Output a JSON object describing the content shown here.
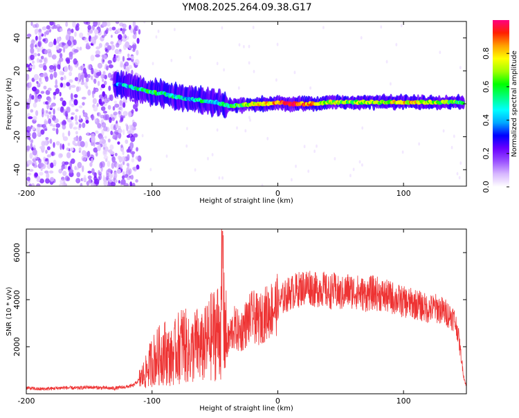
{
  "figure": {
    "title": "YM08.2025.264.09.38.G17"
  },
  "chart_data": [
    {
      "type": "heatmap",
      "xlabel": "Height of straight line (km)",
      "ylabel": "Frequency (Hz)",
      "xlim": [
        -200,
        150
      ],
      "ylim": [
        -50,
        50
      ],
      "xticks": [
        -200,
        -100,
        0,
        100
      ],
      "xtick_labels": [
        "-200",
        "-100",
        "0",
        "100"
      ],
      "yticks": [
        -40,
        -20,
        0,
        20,
        40
      ],
      "ytick_labels": [
        "-40",
        "-20",
        "0",
        "20",
        "40"
      ],
      "colorbar": {
        "label": "Normalized spectral amplitude",
        "range": [
          0,
          1
        ],
        "ticks": [
          0.0,
          0.2,
          0.4,
          0.6,
          0.8
        ],
        "tick_labels": [
          "0.0",
          "0.2",
          "0.4",
          "0.6",
          "0.8"
        ],
        "colors": [
          "#ffffff",
          "#d8b8ff",
          "#9a50ff",
          "#6a00ff",
          "#0000ff",
          "#00a8ff",
          "#00ffff",
          "#00ff80",
          "#00ff00",
          "#a0ff00",
          "#ffff00",
          "#ffa000",
          "#ff2000",
          "#ff0080"
        ]
      },
      "ridge": {
        "x": [
          -130,
          -120,
          -110,
          -100,
          -90,
          -80,
          -70,
          -60,
          -50,
          -45,
          -40,
          -30,
          -20,
          -10,
          0,
          10,
          20,
          30,
          40,
          60,
          80,
          100,
          120,
          140,
          148
        ],
        "freq": [
          12,
          11,
          9,
          7,
          6,
          4,
          3,
          2,
          1,
          0,
          -1,
          -1,
          0,
          0,
          1,
          0,
          0,
          0,
          1,
          1,
          1,
          1,
          1,
          1,
          1
        ],
        "amplitude": [
          0.3,
          0.45,
          0.5,
          0.55,
          0.5,
          0.5,
          0.45,
          0.5,
          0.45,
          0.55,
          0.55,
          0.6,
          0.75,
          0.8,
          0.85,
          0.9,
          0.85,
          0.8,
          0.7,
          0.65,
          0.65,
          0.8,
          0.7,
          0.65,
          0.5
        ]
      },
      "noise_region_x": [
        -200,
        -118
      ]
    },
    {
      "type": "line",
      "xlabel": "Height of straight line (km)",
      "ylabel": "SNR (10 * v/v)",
      "xlim": [
        -200,
        150
      ],
      "ylim": [
        0,
        7000
      ],
      "xticks": [
        -200,
        -100,
        0,
        100
      ],
      "xtick_labels": [
        "-200",
        "-100",
        "0",
        "100"
      ],
      "yticks": [
        2000,
        4000,
        6000
      ],
      "ytick_labels": [
        "2000",
        "4000",
        "6000"
      ],
      "series": [
        {
          "name": "SNR",
          "color": "#ee3333",
          "x": [
            -200,
            -190,
            -180,
            -170,
            -160,
            -150,
            -140,
            -130,
            -120,
            -115,
            -110,
            -105,
            -100,
            -95,
            -90,
            -85,
            -80,
            -75,
            -70,
            -65,
            -60,
            -55,
            -50,
            -45,
            -44,
            -43,
            -40,
            -35,
            -30,
            -25,
            -20,
            -15,
            -10,
            -5,
            0,
            5,
            10,
            15,
            20,
            25,
            30,
            35,
            40,
            45,
            50,
            55,
            60,
            65,
            70,
            75,
            80,
            85,
            90,
            95,
            100,
            105,
            110,
            115,
            120,
            125,
            130,
            135,
            140,
            143,
            146,
            148,
            150
          ],
          "y": [
            250,
            200,
            220,
            260,
            240,
            280,
            250,
            230,
            300,
            350,
            600,
            900,
            1400,
            1600,
            1800,
            1500,
            1900,
            2200,
            1700,
            2100,
            1900,
            2300,
            2600,
            2800,
            6900,
            3000,
            2200,
            2800,
            2600,
            3000,
            3300,
            3100,
            3400,
            3600,
            3800,
            4100,
            4300,
            4400,
            4500,
            4600,
            4400,
            4500,
            4300,
            4400,
            4200,
            4400,
            4350,
            4300,
            4200,
            4300,
            4250,
            4150,
            4100,
            4000,
            3900,
            3850,
            3800,
            3700,
            3600,
            3650,
            3550,
            3400,
            3200,
            2700,
            1500,
            700,
            300
          ]
        }
      ]
    }
  ]
}
